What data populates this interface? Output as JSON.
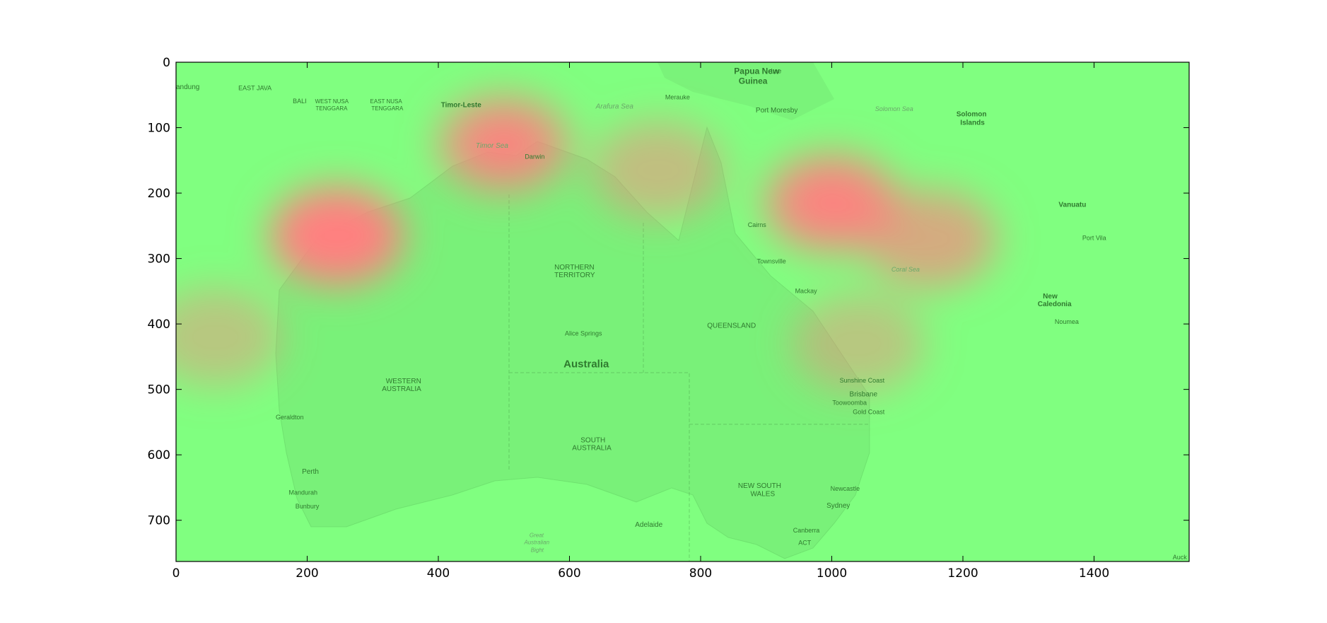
{
  "chart_data": {
    "type": "heatmap",
    "title": "",
    "xlabel": "",
    "ylabel": "",
    "xlim": [
      0,
      1545
    ],
    "ylim": [
      763,
      0
    ],
    "x_ticks": [
      0,
      200,
      400,
      600,
      800,
      1000,
      1200,
      1400
    ],
    "y_ticks": [
      0,
      100,
      200,
      300,
      400,
      500,
      600,
      700
    ],
    "background": "map of Australia",
    "colors": {
      "low": "#80ff80",
      "high": "#ff8080"
    },
    "hotspots": [
      {
        "x": 245,
        "y": 265,
        "intensity": 1.0
      },
      {
        "x": 500,
        "y": 125,
        "intensity": 0.65
      },
      {
        "x": 735,
        "y": 165,
        "intensity": 0.35
      },
      {
        "x": 1000,
        "y": 215,
        "intensity": 0.8
      },
      {
        "x": 1150,
        "y": 270,
        "intensity": 0.55
      },
      {
        "x": 60,
        "y": 420,
        "intensity": 0.25
      },
      {
        "x": 1040,
        "y": 430,
        "intensity": 0.25
      }
    ],
    "map_labels": [
      {
        "text": "Papua New",
        "x": 851,
        "y": 5,
        "cls": "bold",
        "size": 12
      },
      {
        "text": "Guinea",
        "x": 858,
        "y": 20,
        "cls": "bold",
        "size": 12
      },
      {
        "text": "Lae",
        "x": 907,
        "y": 7,
        "cls": "",
        "size": 9
      },
      {
        "text": "andung",
        "x": 0,
        "y": 30,
        "cls": "",
        "size": 10
      },
      {
        "text": "EAST JAVA",
        "x": 95,
        "y": 33,
        "cls": "",
        "size": 9
      },
      {
        "text": "BALI",
        "x": 178,
        "y": 53,
        "cls": "",
        "size": 9
      },
      {
        "text": "WEST NUSA",
        "x": 212,
        "y": 54,
        "cls": "",
        "size": 8
      },
      {
        "text": "TENGGARA",
        "x": 213,
        "y": 65,
        "cls": "",
        "size": 8
      },
      {
        "text": "EAST NUSA",
        "x": 296,
        "y": 54,
        "cls": "",
        "size": 8
      },
      {
        "text": "TENGGARA",
        "x": 298,
        "y": 65,
        "cls": "",
        "size": 8
      },
      {
        "text": "Timor-Leste",
        "x": 404,
        "y": 58,
        "cls": "bold",
        "size": 10
      },
      {
        "text": "Arafura Sea",
        "x": 640,
        "y": 60,
        "cls": "sea",
        "size": 10
      },
      {
        "text": "Merauke",
        "x": 746,
        "y": 47,
        "cls": "",
        "size": 9
      },
      {
        "text": "Port Moresby",
        "x": 884,
        "y": 66,
        "cls": "",
        "size": 10
      },
      {
        "text": "Solomon Sea",
        "x": 1066,
        "y": 65,
        "cls": "sea",
        "size": 9
      },
      {
        "text": "Solomon",
        "x": 1190,
        "y": 72,
        "cls": "bold",
        "size": 10
      },
      {
        "text": "Islands",
        "x": 1196,
        "y": 85,
        "cls": "bold",
        "size": 10
      },
      {
        "text": "Timor Sea",
        "x": 457,
        "y": 120,
        "cls": "sea",
        "size": 10
      },
      {
        "text": "Darwin",
        "x": 532,
        "y": 138,
        "cls": "",
        "size": 9
      },
      {
        "text": "Vanuatu",
        "x": 1346,
        "y": 210,
        "cls": "bold",
        "size": 10
      },
      {
        "text": "Cairns",
        "x": 872,
        "y": 242,
        "cls": "",
        "size": 9
      },
      {
        "text": "Port Vila",
        "x": 1382,
        "y": 262,
        "cls": "",
        "size": 9
      },
      {
        "text": "NORTHERN",
        "x": 577,
        "y": 306,
        "cls": "",
        "size": 10
      },
      {
        "text": "TERRITORY",
        "x": 577,
        "y": 318,
        "cls": "",
        "size": 10
      },
      {
        "text": "Townsville",
        "x": 886,
        "y": 298,
        "cls": "",
        "size": 9
      },
      {
        "text": "Coral Sea",
        "x": 1091,
        "y": 310,
        "cls": "sea",
        "size": 9
      },
      {
        "text": "Mackay",
        "x": 944,
        "y": 343,
        "cls": "",
        "size": 9
      },
      {
        "text": "New",
        "x": 1322,
        "y": 350,
        "cls": "bold",
        "size": 10
      },
      {
        "text": "Caledonia",
        "x": 1314,
        "y": 362,
        "cls": "bold",
        "size": 10
      },
      {
        "text": "Noumea",
        "x": 1340,
        "y": 390,
        "cls": "",
        "size": 9
      },
      {
        "text": "QUEENSLAND",
        "x": 810,
        "y": 395,
        "cls": "",
        "size": 10
      },
      {
        "text": "Alice Springs",
        "x": 593,
        "y": 408,
        "cls": "",
        "size": 9
      },
      {
        "text": "Australia",
        "x": 591,
        "y": 450,
        "cls": "bold",
        "size": 15
      },
      {
        "text": "WESTERN",
        "x": 320,
        "y": 480,
        "cls": "",
        "size": 10
      },
      {
        "text": "AUSTRALIA",
        "x": 314,
        "y": 492,
        "cls": "",
        "size": 10
      },
      {
        "text": "Sunshine Coast",
        "x": 1012,
        "y": 480,
        "cls": "",
        "size": 9
      },
      {
        "text": "Brisbane",
        "x": 1027,
        "y": 500,
        "cls": "",
        "size": 10
      },
      {
        "text": "Toowoomba",
        "x": 1001,
        "y": 514,
        "cls": "",
        "size": 9
      },
      {
        "text": "Gold Coast",
        "x": 1032,
        "y": 528,
        "cls": "",
        "size": 9
      },
      {
        "text": "Geraldton",
        "x": 152,
        "y": 536,
        "cls": "",
        "size": 9
      },
      {
        "text": "SOUTH",
        "x": 617,
        "y": 570,
        "cls": "",
        "size": 10
      },
      {
        "text": "AUSTRALIA",
        "x": 604,
        "y": 582,
        "cls": "",
        "size": 10
      },
      {
        "text": "Perth",
        "x": 192,
        "y": 618,
        "cls": "",
        "size": 10
      },
      {
        "text": "NEW SOUTH",
        "x": 857,
        "y": 640,
        "cls": "",
        "size": 10
      },
      {
        "text": "WALES",
        "x": 876,
        "y": 652,
        "cls": "",
        "size": 10
      },
      {
        "text": "Newcastle",
        "x": 998,
        "y": 645,
        "cls": "",
        "size": 9
      },
      {
        "text": "Mandurah",
        "x": 172,
        "y": 651,
        "cls": "",
        "size": 9
      },
      {
        "text": "Sydney",
        "x": 992,
        "y": 670,
        "cls": "",
        "size": 10
      },
      {
        "text": "Bunbury",
        "x": 182,
        "y": 672,
        "cls": "",
        "size": 9
      },
      {
        "text": "Adelaide",
        "x": 700,
        "y": 699,
        "cls": "",
        "size": 10
      },
      {
        "text": "Great",
        "x": 539,
        "y": 717,
        "cls": "sea",
        "size": 8
      },
      {
        "text": "Australian",
        "x": 531,
        "y": 728,
        "cls": "sea",
        "size": 8
      },
      {
        "text": "Bight",
        "x": 541,
        "y": 740,
        "cls": "sea",
        "size": 8
      },
      {
        "text": "Canberra",
        "x": 941,
        "y": 709,
        "cls": "",
        "size": 9
      },
      {
        "text": "ACT",
        "x": 949,
        "y": 728,
        "cls": "",
        "size": 9
      },
      {
        "text": "Auck",
        "x": 1520,
        "y": 750,
        "cls": "",
        "size": 9
      }
    ]
  }
}
